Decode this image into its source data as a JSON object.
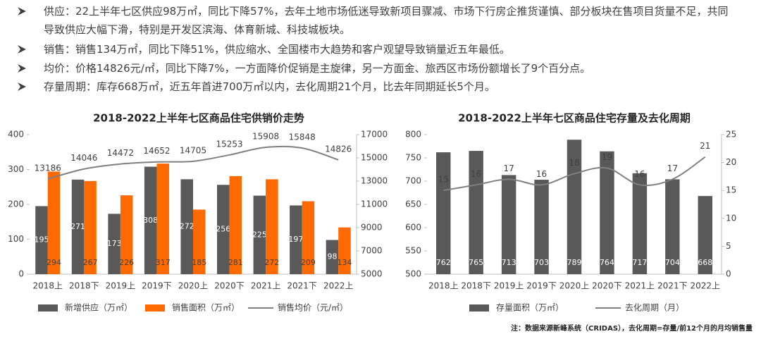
{
  "bullets": [
    "供应：22上半年七区供应98万㎡，同比下降57%，去年土地市场低迷导致新项目骤减、市场下行房企推货谨慎、部分板块在售项目货量不足，共同导致供应大幅下滑，特别是开发区滨海、体育新城、科技城板块。",
    "销售：销售134万㎡，同比下降51%，供应缩水、全国楼市大趋势和客户观望导致销量近五年最低。",
    "均价：价格14826元/㎡，同比下降7%，一方面降价促销是主旋律，另一方面金、旅西区市场份额增长了9个百分点。",
    "存量周期：库存668万㎡，近五年首进700万㎡以内，去化周期21个月，比去年同期延长5个月。"
  ],
  "chart_data": [
    {
      "type": "bar",
      "title": "2018-2022上半年七区商品住宅供销价走势",
      "categories": [
        "2018上",
        "2018下",
        "2019上",
        "2019下",
        "2020上",
        "2020下",
        "2021上",
        "2021下",
        "2022上"
      ],
      "series": [
        {
          "name": "新增供应（万㎡）",
          "color": "#595959",
          "values": [
            195,
            271,
            173,
            308,
            272,
            256,
            225,
            197,
            98
          ]
        },
        {
          "name": "销售面积（万㎡）",
          "color": "#ff6a00",
          "values": [
            294,
            267,
            226,
            317,
            185,
            281,
            272,
            209,
            134
          ]
        },
        {
          "name": "销售均价（元/㎡）",
          "color": "#808080",
          "axis": "y2",
          "values": [
            13186,
            14046,
            14472,
            14652,
            14705,
            15253,
            15908,
            15848,
            14826
          ]
        }
      ],
      "ylim": [
        0,
        400
      ],
      "yticks": [
        0,
        100,
        200,
        300,
        400
      ],
      "y2lim": [
        5000,
        17000
      ],
      "y2ticks": [
        5000,
        7000,
        9000,
        11000,
        13000,
        15000,
        17000
      ]
    },
    {
      "type": "bar",
      "title": "2018-2022上半年七区商品住宅存量及去化周期",
      "categories": [
        "2018上",
        "2018下",
        "2019上",
        "2019下",
        "2020上",
        "2020下",
        "2021上",
        "2021下",
        "2022上"
      ],
      "series": [
        {
          "name": "存量面积（万㎡）",
          "color": "#595959",
          "values": [
            762,
            765,
            713,
            703,
            789,
            764,
            717,
            704,
            668
          ]
        },
        {
          "name": "去化周期（月）",
          "color": "#808080",
          "axis": "y2",
          "values": [
            15,
            16,
            17,
            16,
            18,
            19,
            16,
            17,
            21
          ]
        }
      ],
      "ylim": [
        500,
        800
      ],
      "yticks": [
        500,
        550,
        600,
        650,
        700,
        750,
        800
      ],
      "y2lim": [
        0,
        25
      ],
      "y2ticks": [
        0,
        5,
        10,
        15,
        20,
        25
      ]
    }
  ],
  "note": "注：数据来源新峰系统（CRIDAS），去化周期=存量/前12个月的月均销售量"
}
